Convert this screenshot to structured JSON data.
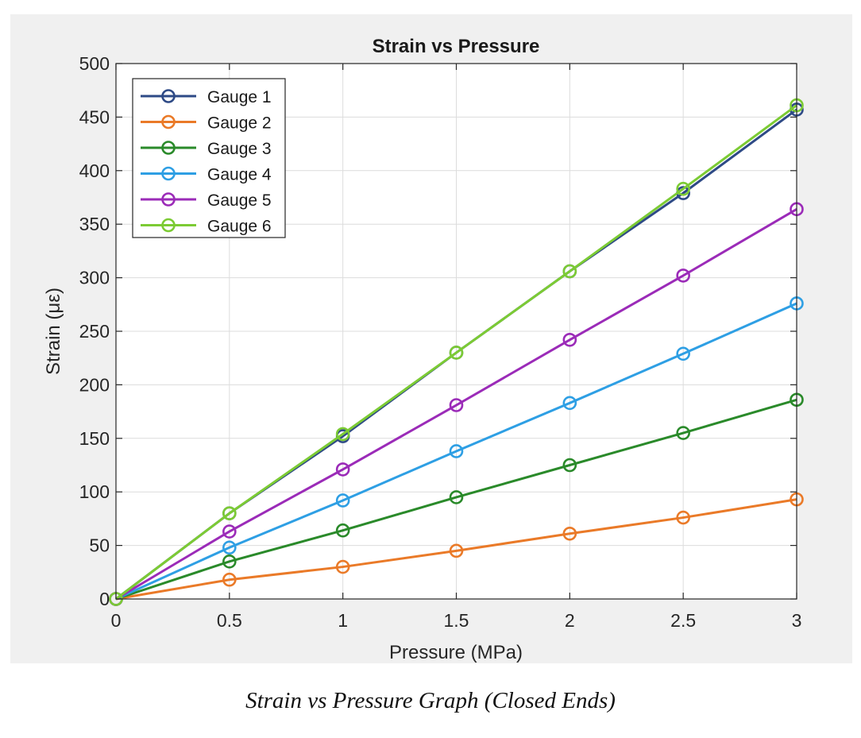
{
  "caption": "Strain vs Pressure Graph (Closed Ends)",
  "chart_data": {
    "type": "line",
    "title": "Strain vs Pressure",
    "xlabel": "Pressure (MPa)",
    "ylabel": "Strain (με)",
    "xlim": [
      0,
      3
    ],
    "ylim": [
      0,
      500
    ],
    "xticks": [
      "0",
      "0.5",
      "1",
      "1.5",
      "2",
      "2.5",
      "3"
    ],
    "yticks": [
      "0",
      "50",
      "100",
      "150",
      "200",
      "250",
      "300",
      "350",
      "400",
      "450",
      "500"
    ],
    "grid": true,
    "legend_position": "top-left",
    "x": [
      0,
      0.5,
      1,
      1.5,
      2,
      2.5,
      3
    ],
    "series": [
      {
        "name": "Gauge 1",
        "color": "#2e4a86",
        "values": [
          0,
          80,
          152,
          230,
          306,
          379,
          457
        ]
      },
      {
        "name": "Gauge 2",
        "color": "#ea7a28",
        "values": [
          0,
          18,
          30,
          45,
          61,
          76,
          93
        ]
      },
      {
        "name": "Gauge 3",
        "color": "#2a8a2a",
        "values": [
          0,
          35,
          64,
          95,
          125,
          155,
          186
        ]
      },
      {
        "name": "Gauge 4",
        "color": "#2e9fe4",
        "values": [
          0,
          48,
          92,
          138,
          183,
          229,
          276
        ]
      },
      {
        "name": "Gauge 5",
        "color": "#9b2bb8",
        "values": [
          0,
          63,
          121,
          181,
          242,
          302,
          364
        ]
      },
      {
        "name": "Gauge 6",
        "color": "#7ccb34",
        "values": [
          0,
          80,
          154,
          230,
          306,
          383,
          461
        ]
      }
    ]
  }
}
